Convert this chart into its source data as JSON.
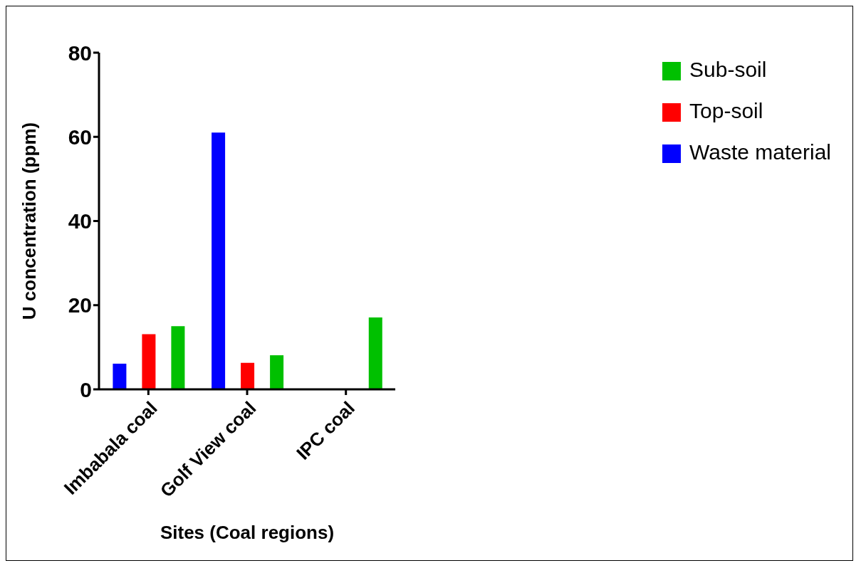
{
  "chart_data": {
    "type": "bar",
    "xlabel": "Sites (Coal regions)",
    "ylabel": "U concentration (ppm)",
    "categories": [
      "Imbabala coal",
      "Golf View coal",
      "IPC coal"
    ],
    "series": [
      {
        "name": "Waste material",
        "color": "#0000ff",
        "values": [
          6.1,
          61.0,
          null
        ]
      },
      {
        "name": "Top-soil",
        "color": "#ff0000",
        "values": [
          13.1,
          6.3,
          null
        ]
      },
      {
        "name": "Sub-soil",
        "color": "#00c000",
        "values": [
          15.0,
          8.1,
          17.1
        ]
      }
    ],
    "ylim": [
      0,
      80
    ],
    "yticks": [
      0,
      20,
      40,
      60,
      80
    ],
    "grid": false,
    "legend": "top right"
  }
}
